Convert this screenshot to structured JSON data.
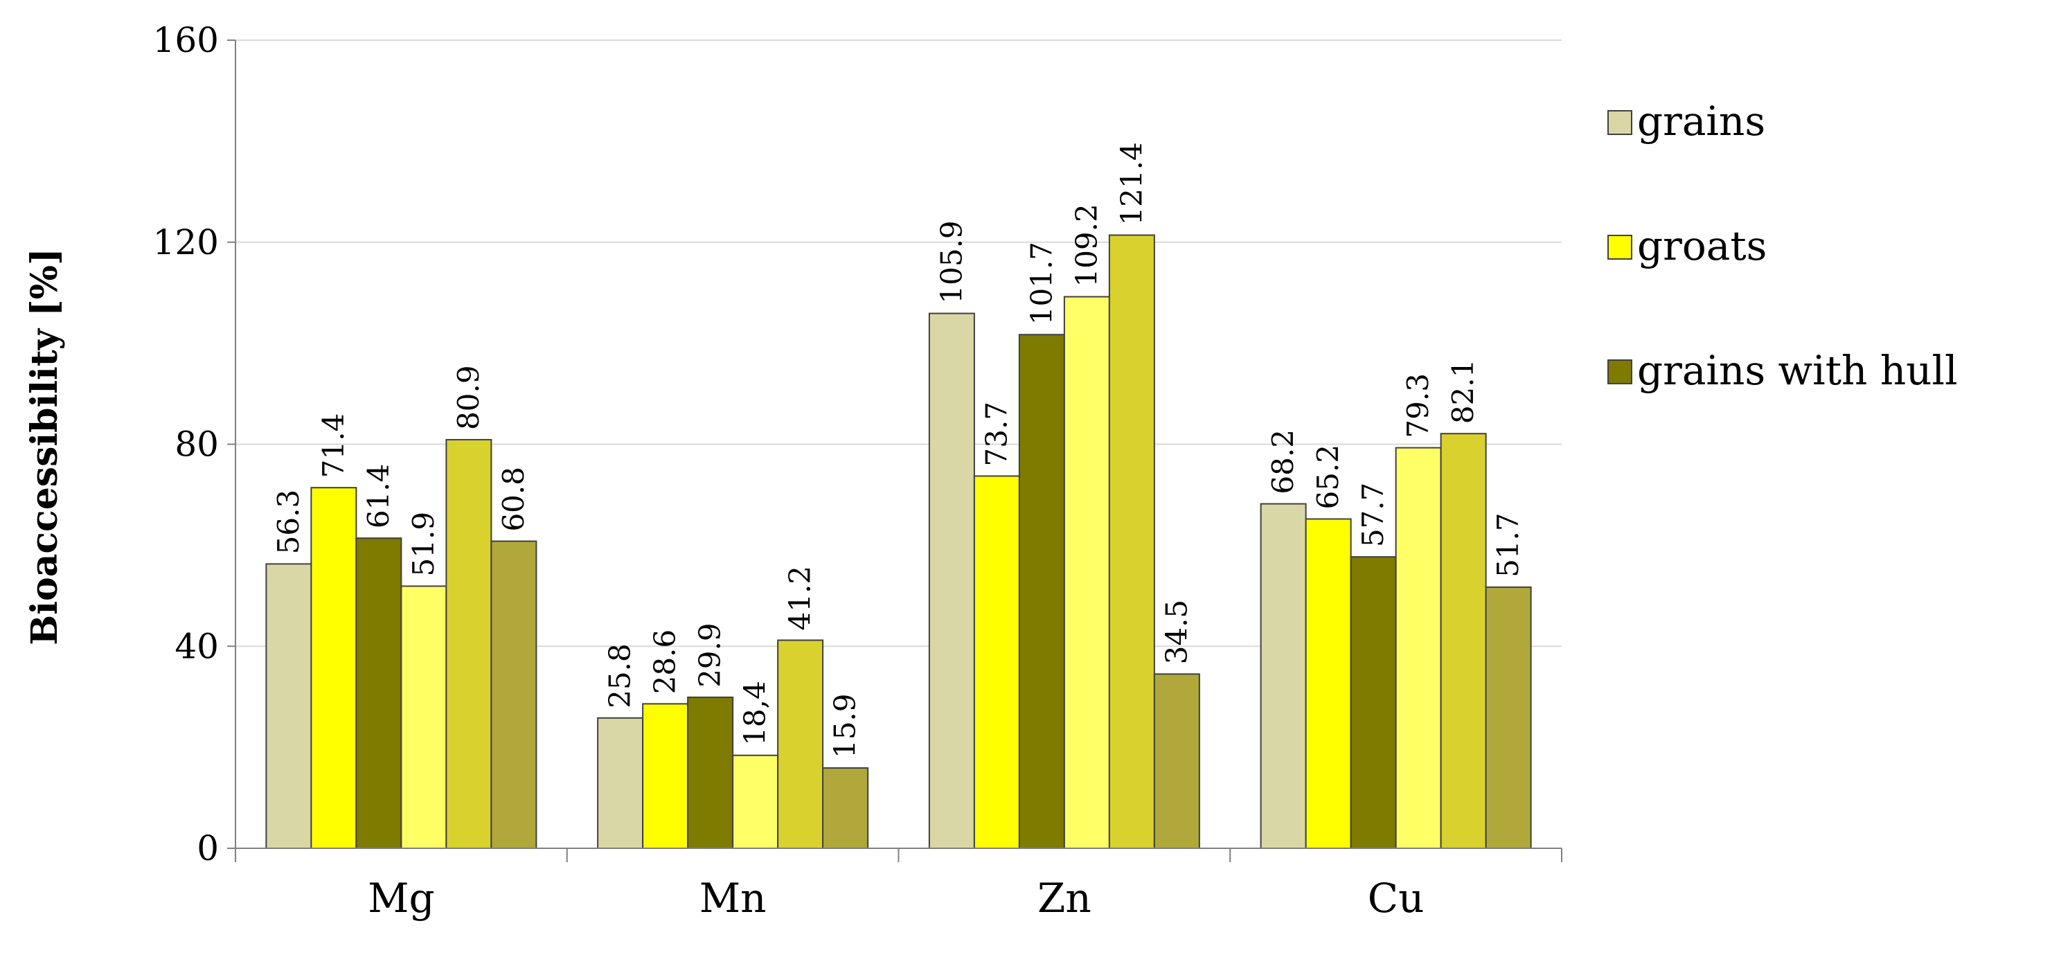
{
  "chart_data": {
    "type": "bar",
    "title": "",
    "xlabel": "",
    "ylabel": "Bioaccessibility [%]",
    "ylim": [
      0,
      160
    ],
    "yticks": [
      0,
      40,
      80,
      120,
      160
    ],
    "grid": true,
    "legend_position": "right",
    "categories": [
      "Mg",
      "Mn",
      "Zn",
      "Cu"
    ],
    "series": [
      {
        "values": [
          56.3,
          25.8,
          105.9,
          68.2
        ],
        "labels": [
          "56.3",
          "25.8",
          "105.9",
          "68.2"
        ],
        "color": "#d9d7a6"
      },
      {
        "values": [
          71.4,
          28.6,
          73.7,
          65.2
        ],
        "labels": [
          "71.4",
          "28.6",
          "73.7",
          "65.2"
        ],
        "color": "#ffff00"
      },
      {
        "values": [
          61.4,
          29.9,
          101.7,
          57.7
        ],
        "labels": [
          "61.4",
          "29.9",
          "101.7",
          "57.7"
        ],
        "color": "#7f7a00"
      },
      {
        "values": [
          51.9,
          18.4,
          109.2,
          79.3
        ],
        "labels": [
          "51.9",
          "18,4",
          "109.2",
          "79.3"
        ],
        "color": "#ffff66"
      },
      {
        "values": [
          80.9,
          41.2,
          121.4,
          82.1
        ],
        "labels": [
          "80.9",
          "41.2",
          "121.4",
          "82.1"
        ],
        "color": "#d9d12e"
      },
      {
        "values": [
          60.8,
          15.9,
          34.5,
          51.7
        ],
        "labels": [
          "60.8",
          "15.9",
          "34.5",
          "51.7"
        ],
        "color": "#b0a83a"
      }
    ],
    "legend": [
      {
        "label": "grains",
        "color": "#d9d7a6"
      },
      {
        "label": "groats",
        "color": "#ffff00"
      },
      {
        "label": "grains with hull",
        "color": "#7f7a00"
      }
    ]
  }
}
